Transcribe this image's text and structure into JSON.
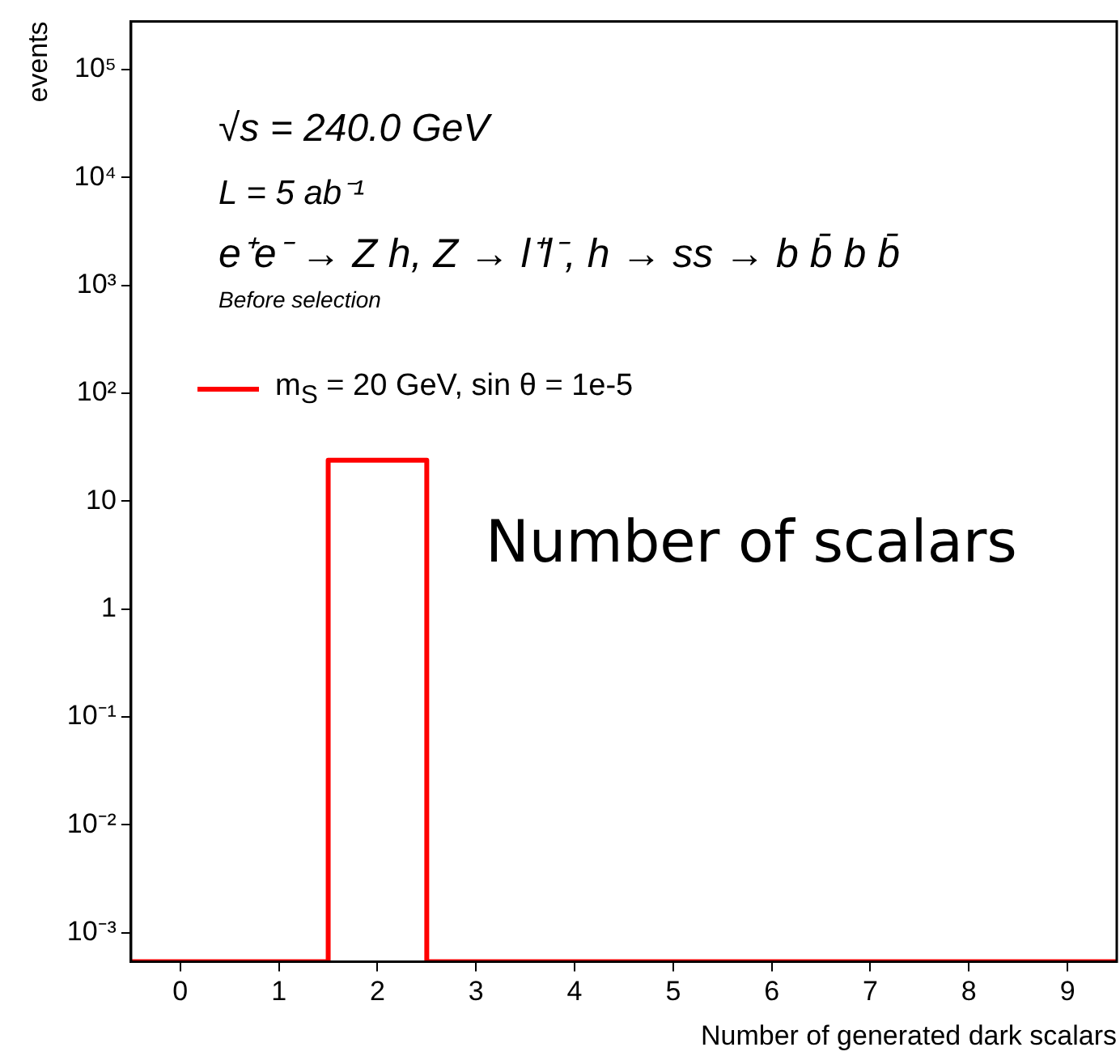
{
  "chart_data": {
    "type": "histogram",
    "bins": [
      -0.5,
      0.5,
      1.5,
      2.5,
      3.5,
      4.5,
      5.5,
      6.5,
      7.5,
      8.5,
      9.5
    ],
    "series": [
      {
        "name": "m$_{S}$ = 20 GeV, sin  θ = 1e-5",
        "color": "#ff0000",
        "values": [
          null,
          null,
          24,
          null,
          null,
          null,
          null,
          null,
          null,
          null
        ]
      }
    ],
    "xlim": [
      -0.5,
      9.5
    ],
    "xticks": [
      0,
      1,
      2,
      3,
      4,
      5,
      6,
      7,
      8,
      9
    ],
    "ylim": [
      0.00054,
      280000
    ],
    "log": true,
    "yticks": [
      {
        "value": 0.001,
        "label": "10⁻³"
      },
      {
        "value": 0.01,
        "label": "10⁻²"
      },
      {
        "value": 0.1,
        "label": "10⁻¹"
      },
      1,
      10,
      {
        "value": 100,
        "label": "10²"
      },
      {
        "value": 1000,
        "label": "10³"
      },
      {
        "value": 10000,
        "label": "10⁴"
      },
      {
        "value": 100000,
        "label": "10⁵"
      }
    ],
    "xlabel": "Number of generated dark scalars",
    "ylabel": "events",
    "legend": "top left",
    "grid": false,
    "annotations": [
      "√s = 240.0 GeV",
      "L = 5 ab⁻¹",
      "e⁺e⁻ → Z h, Z → l⁺l⁻, h → ss → b b̄ b b̄",
      "Before selection",
      "Number of scalars"
    ]
  }
}
